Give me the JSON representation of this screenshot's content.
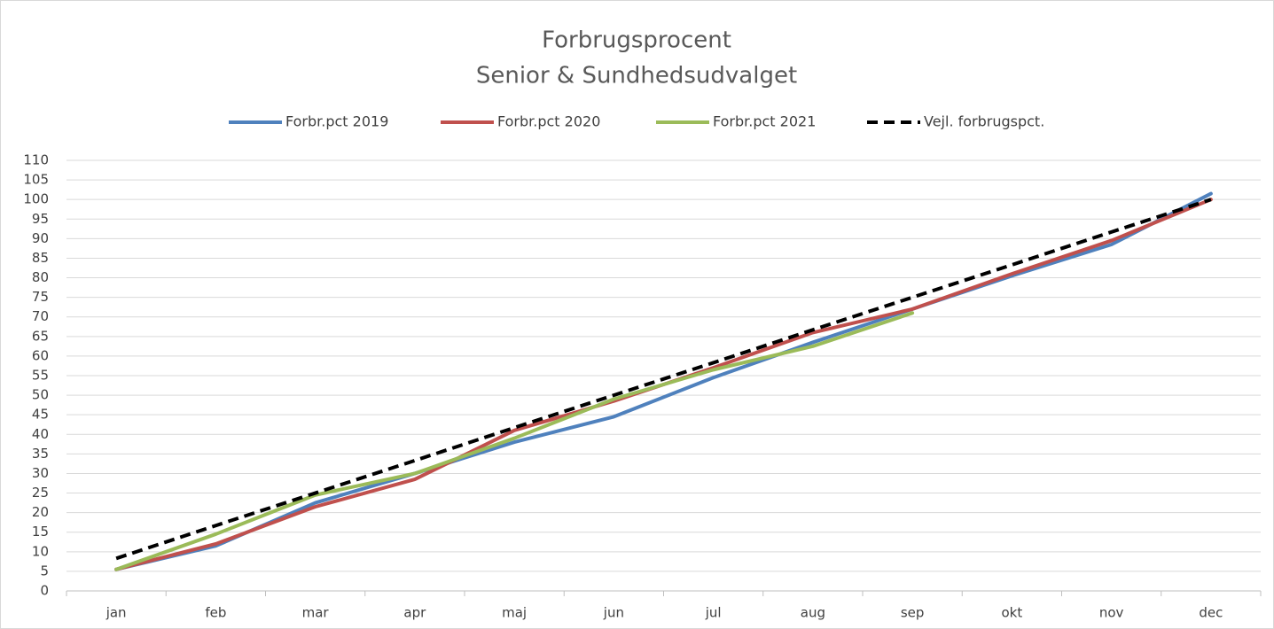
{
  "chart_data": {
    "type": "line",
    "title": "Forbrugsprocent",
    "subtitle": "Senior & Sundhedsudvalget",
    "categories": [
      "jan",
      "feb",
      "mar",
      "apr",
      "maj",
      "jun",
      "jul",
      "aug",
      "sep",
      "okt",
      "nov",
      "dec"
    ],
    "series": [
      {
        "name": "Forbr.pct 2019",
        "color": "#4f81bd",
        "values": [
          5.5,
          11.5,
          22.5,
          30,
          38,
          44.5,
          54.5,
          63.5,
          72,
          80.5,
          88.5,
          101.5
        ]
      },
      {
        "name": "Forbr.pct 2020",
        "color": "#c0504d",
        "values": [
          5.5,
          12,
          21.5,
          28.5,
          41,
          48.5,
          57,
          66,
          72,
          81,
          89.5,
          100
        ]
      },
      {
        "name": "Forbr.pct 2021",
        "color": "#9bbb59",
        "values": [
          5.5,
          14.5,
          24.5,
          30,
          39,
          49,
          56.5,
          62.5,
          71,
          null,
          null,
          null
        ]
      },
      {
        "name": "Vejl. forbrugspct.",
        "color": "#000000",
        "dashed": true,
        "values": [
          8.3,
          16.7,
          25,
          33.3,
          41.7,
          50,
          58.3,
          66.7,
          75,
          83.3,
          91.7,
          100
        ]
      }
    ],
    "ylim": [
      0,
      110
    ],
    "yticks": [
      0,
      5,
      10,
      15,
      20,
      25,
      30,
      35,
      40,
      45,
      50,
      55,
      60,
      65,
      70,
      75,
      80,
      85,
      90,
      95,
      100,
      105,
      110
    ],
    "grid": true,
    "legend": "top"
  }
}
